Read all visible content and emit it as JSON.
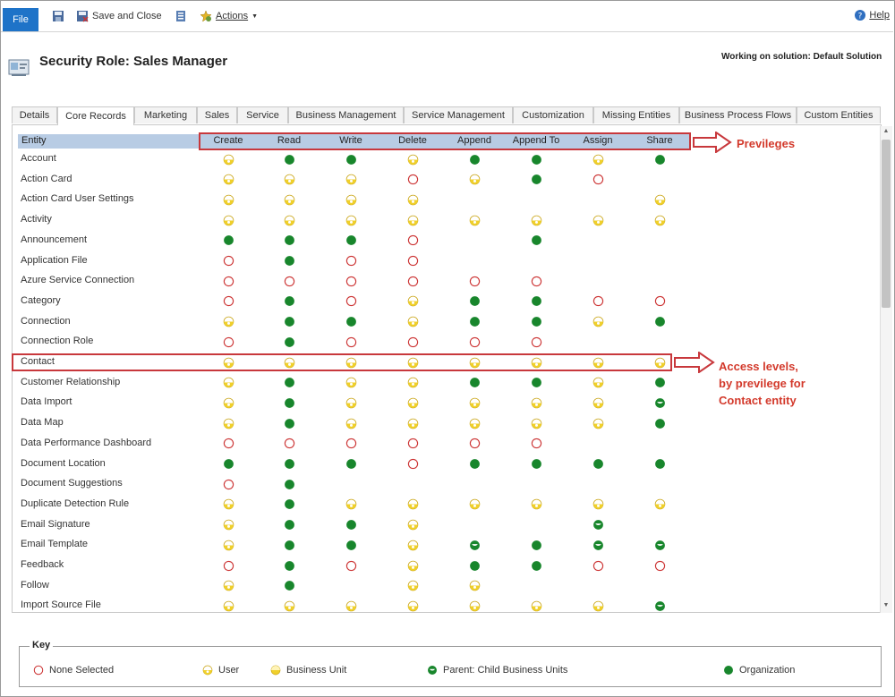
{
  "toolbar": {
    "file_label": "File",
    "save_close_label": "Save and Close",
    "actions_label": "Actions",
    "help_label": "Help"
  },
  "header": {
    "title": "Security Role: Sales Manager",
    "solution": "Working on solution: Default Solution"
  },
  "tabs": [
    "Details",
    "Core Records",
    "Marketing",
    "Sales",
    "Service",
    "Business Management",
    "Service Management",
    "Customization",
    "Missing Entities",
    "Business Process Flows",
    "Custom Entities"
  ],
  "active_tab": "Core Records",
  "grid": {
    "entity_header": "Entity",
    "privileges": [
      "Create",
      "Read",
      "Write",
      "Delete",
      "Append",
      "Append To",
      "Assign",
      "Share"
    ],
    "legend_codes": {
      "N": "None Selected",
      "U": "User",
      "B": "Business Unit",
      "P": "Parent: Child Business Units",
      "O": "Organization",
      "": "not applicable"
    },
    "rows": [
      {
        "entity": "Account",
        "levels": [
          "U",
          "O",
          "O",
          "U",
          "O",
          "O",
          "U",
          "O"
        ]
      },
      {
        "entity": "Action Card",
        "levels": [
          "U",
          "U",
          "U",
          "N",
          "U",
          "O",
          "N",
          ""
        ]
      },
      {
        "entity": "Action Card User Settings",
        "levels": [
          "U",
          "U",
          "U",
          "U",
          "",
          "",
          "",
          "U"
        ]
      },
      {
        "entity": "Activity",
        "levels": [
          "U",
          "U",
          "U",
          "U",
          "U",
          "U",
          "U",
          "U"
        ]
      },
      {
        "entity": "Announcement",
        "levels": [
          "O",
          "O",
          "O",
          "N",
          "",
          "O",
          "",
          ""
        ]
      },
      {
        "entity": "Application File",
        "levels": [
          "N",
          "O",
          "N",
          "N",
          "",
          "",
          "",
          ""
        ]
      },
      {
        "entity": "Azure Service Connection",
        "levels": [
          "N",
          "N",
          "N",
          "N",
          "N",
          "N",
          "",
          ""
        ]
      },
      {
        "entity": "Category",
        "levels": [
          "N",
          "O",
          "N",
          "U",
          "O",
          "O",
          "N",
          "N"
        ]
      },
      {
        "entity": "Connection",
        "levels": [
          "U",
          "O",
          "O",
          "U",
          "O",
          "O",
          "U",
          "O"
        ]
      },
      {
        "entity": "Connection Role",
        "levels": [
          "N",
          "O",
          "N",
          "N",
          "N",
          "N",
          "",
          ""
        ]
      },
      {
        "entity": "Contact",
        "levels": [
          "U",
          "U",
          "U",
          "U",
          "U",
          "U",
          "U",
          "U"
        ]
      },
      {
        "entity": "Customer Relationship",
        "levels": [
          "U",
          "O",
          "U",
          "U",
          "O",
          "O",
          "U",
          "O"
        ]
      },
      {
        "entity": "Data Import",
        "levels": [
          "U",
          "O",
          "U",
          "U",
          "U",
          "U",
          "U",
          "P"
        ]
      },
      {
        "entity": "Data Map",
        "levels": [
          "U",
          "O",
          "U",
          "U",
          "U",
          "U",
          "U",
          "O"
        ]
      },
      {
        "entity": "Data Performance Dashboard",
        "levels": [
          "N",
          "N",
          "N",
          "N",
          "N",
          "N",
          "",
          ""
        ]
      },
      {
        "entity": "Document Location",
        "levels": [
          "O",
          "O",
          "O",
          "N",
          "O",
          "O",
          "O",
          "O"
        ]
      },
      {
        "entity": "Document Suggestions",
        "levels": [
          "N",
          "O",
          "",
          "",
          "",
          "",
          "",
          ""
        ]
      },
      {
        "entity": "Duplicate Detection Rule",
        "levels": [
          "U",
          "O",
          "U",
          "U",
          "U",
          "U",
          "U",
          "U"
        ]
      },
      {
        "entity": "Email Signature",
        "levels": [
          "U",
          "O",
          "O",
          "U",
          "",
          "",
          "P",
          ""
        ]
      },
      {
        "entity": "Email Template",
        "levels": [
          "U",
          "O",
          "O",
          "U",
          "P",
          "O",
          "P",
          "P"
        ]
      },
      {
        "entity": "Feedback",
        "levels": [
          "N",
          "O",
          "N",
          "U",
          "O",
          "O",
          "N",
          "N"
        ]
      },
      {
        "entity": "Follow",
        "levels": [
          "U",
          "O",
          "",
          "U",
          "U",
          "",
          "",
          ""
        ]
      },
      {
        "entity": "Import Source File",
        "levels": [
          "U",
          "U",
          "U",
          "U",
          "U",
          "U",
          "U",
          "P"
        ]
      }
    ]
  },
  "annotations": {
    "privileges_label": "Previleges",
    "access_levels_lines": [
      "Access levels,",
      "by previlege for",
      "Contact entity"
    ]
  },
  "key": {
    "title": "Key",
    "items": [
      {
        "code": "N",
        "label": "None Selected"
      },
      {
        "code": "U",
        "label": "User"
      },
      {
        "code": "B",
        "label": "Business Unit"
      },
      {
        "code": "P",
        "label": "Parent: Child Business Units"
      },
      {
        "code": "O",
        "label": "Organization"
      }
    ]
  },
  "colors": {
    "file_button": "#1e73c8",
    "header_bar": "#b8cce4",
    "highlight": "#c8383c",
    "annotation_text": "#d33a2c",
    "none": "#cc3333",
    "user": "#f0d02a",
    "organization": "#18862c"
  }
}
